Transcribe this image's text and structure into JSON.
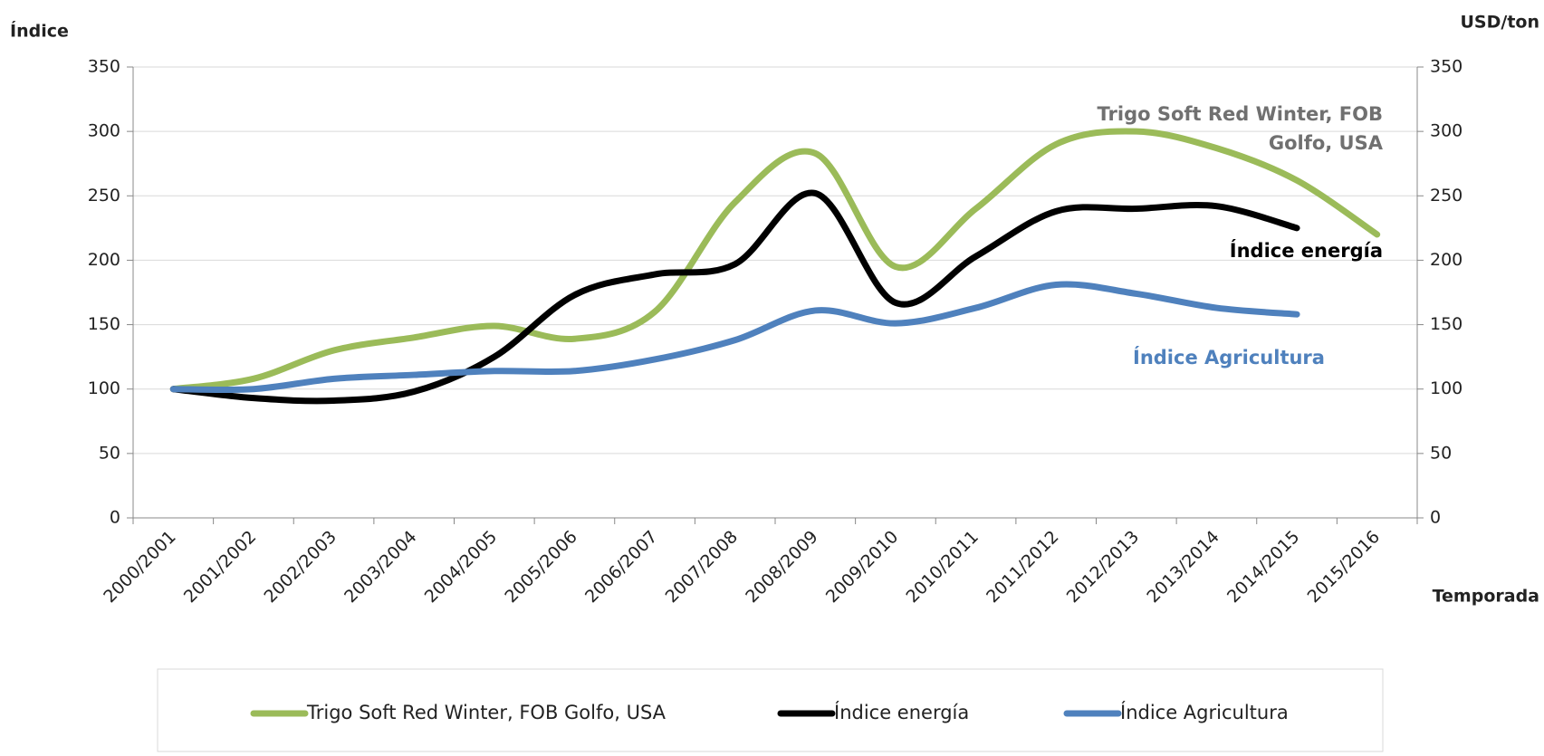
{
  "chart_data": {
    "type": "line",
    "y_label": "Índice",
    "y2_label": "USD/ton",
    "x_label": "Temporada",
    "categories": [
      "2000/2001",
      "2001/2002",
      "2002/2003",
      "2003/2004",
      "2004/2005",
      "2005/2006",
      "2006/2007",
      "2007/2008",
      "2008/2009",
      "2009/2010",
      "2010/2011",
      "2011/2012",
      "2012/2013",
      "2013/2014",
      "2014/2015",
      "2015/2016"
    ],
    "series": [
      {
        "name": "Trigo Soft Red Winter, FOB Golfo, USA",
        "color": "#9bbb59",
        "values": [
          100,
          108,
          130,
          140,
          149,
          139,
          160,
          245,
          283,
          195,
          240,
          290,
          300,
          287,
          262,
          220
        ]
      },
      {
        "name": "Índice energía",
        "color": "#000000",
        "values": [
          100,
          93,
          91,
          98,
          125,
          173,
          189,
          197,
          252,
          167,
          203,
          238,
          240,
          242,
          225,
          null
        ]
      },
      {
        "name": "Índice Agricultura",
        "color": "#4f81bd",
        "values": [
          100,
          100,
          108,
          111,
          114,
          114,
          123,
          138,
          161,
          151,
          163,
          181,
          174,
          163,
          158,
          null
        ]
      }
    ],
    "annotations": [
      {
        "lines": [
          "Trigo Soft Red Winter, FOB",
          "Golfo, USA"
        ],
        "color": "#707070"
      },
      {
        "lines": [
          "Índice energía"
        ],
        "color": "#000000"
      },
      {
        "lines": [
          "Índice Agricultura"
        ],
        "color": "#4f81bd"
      }
    ],
    "ylim": [
      0,
      350
    ],
    "yticks": [
      0,
      50,
      100,
      150,
      200,
      250,
      300,
      350
    ],
    "y2lim": [
      0,
      350
    ],
    "y2ticks": [
      0,
      50,
      100,
      150,
      200,
      250,
      300,
      350
    ],
    "grid": true,
    "smooth": true,
    "legend": "bottom"
  }
}
